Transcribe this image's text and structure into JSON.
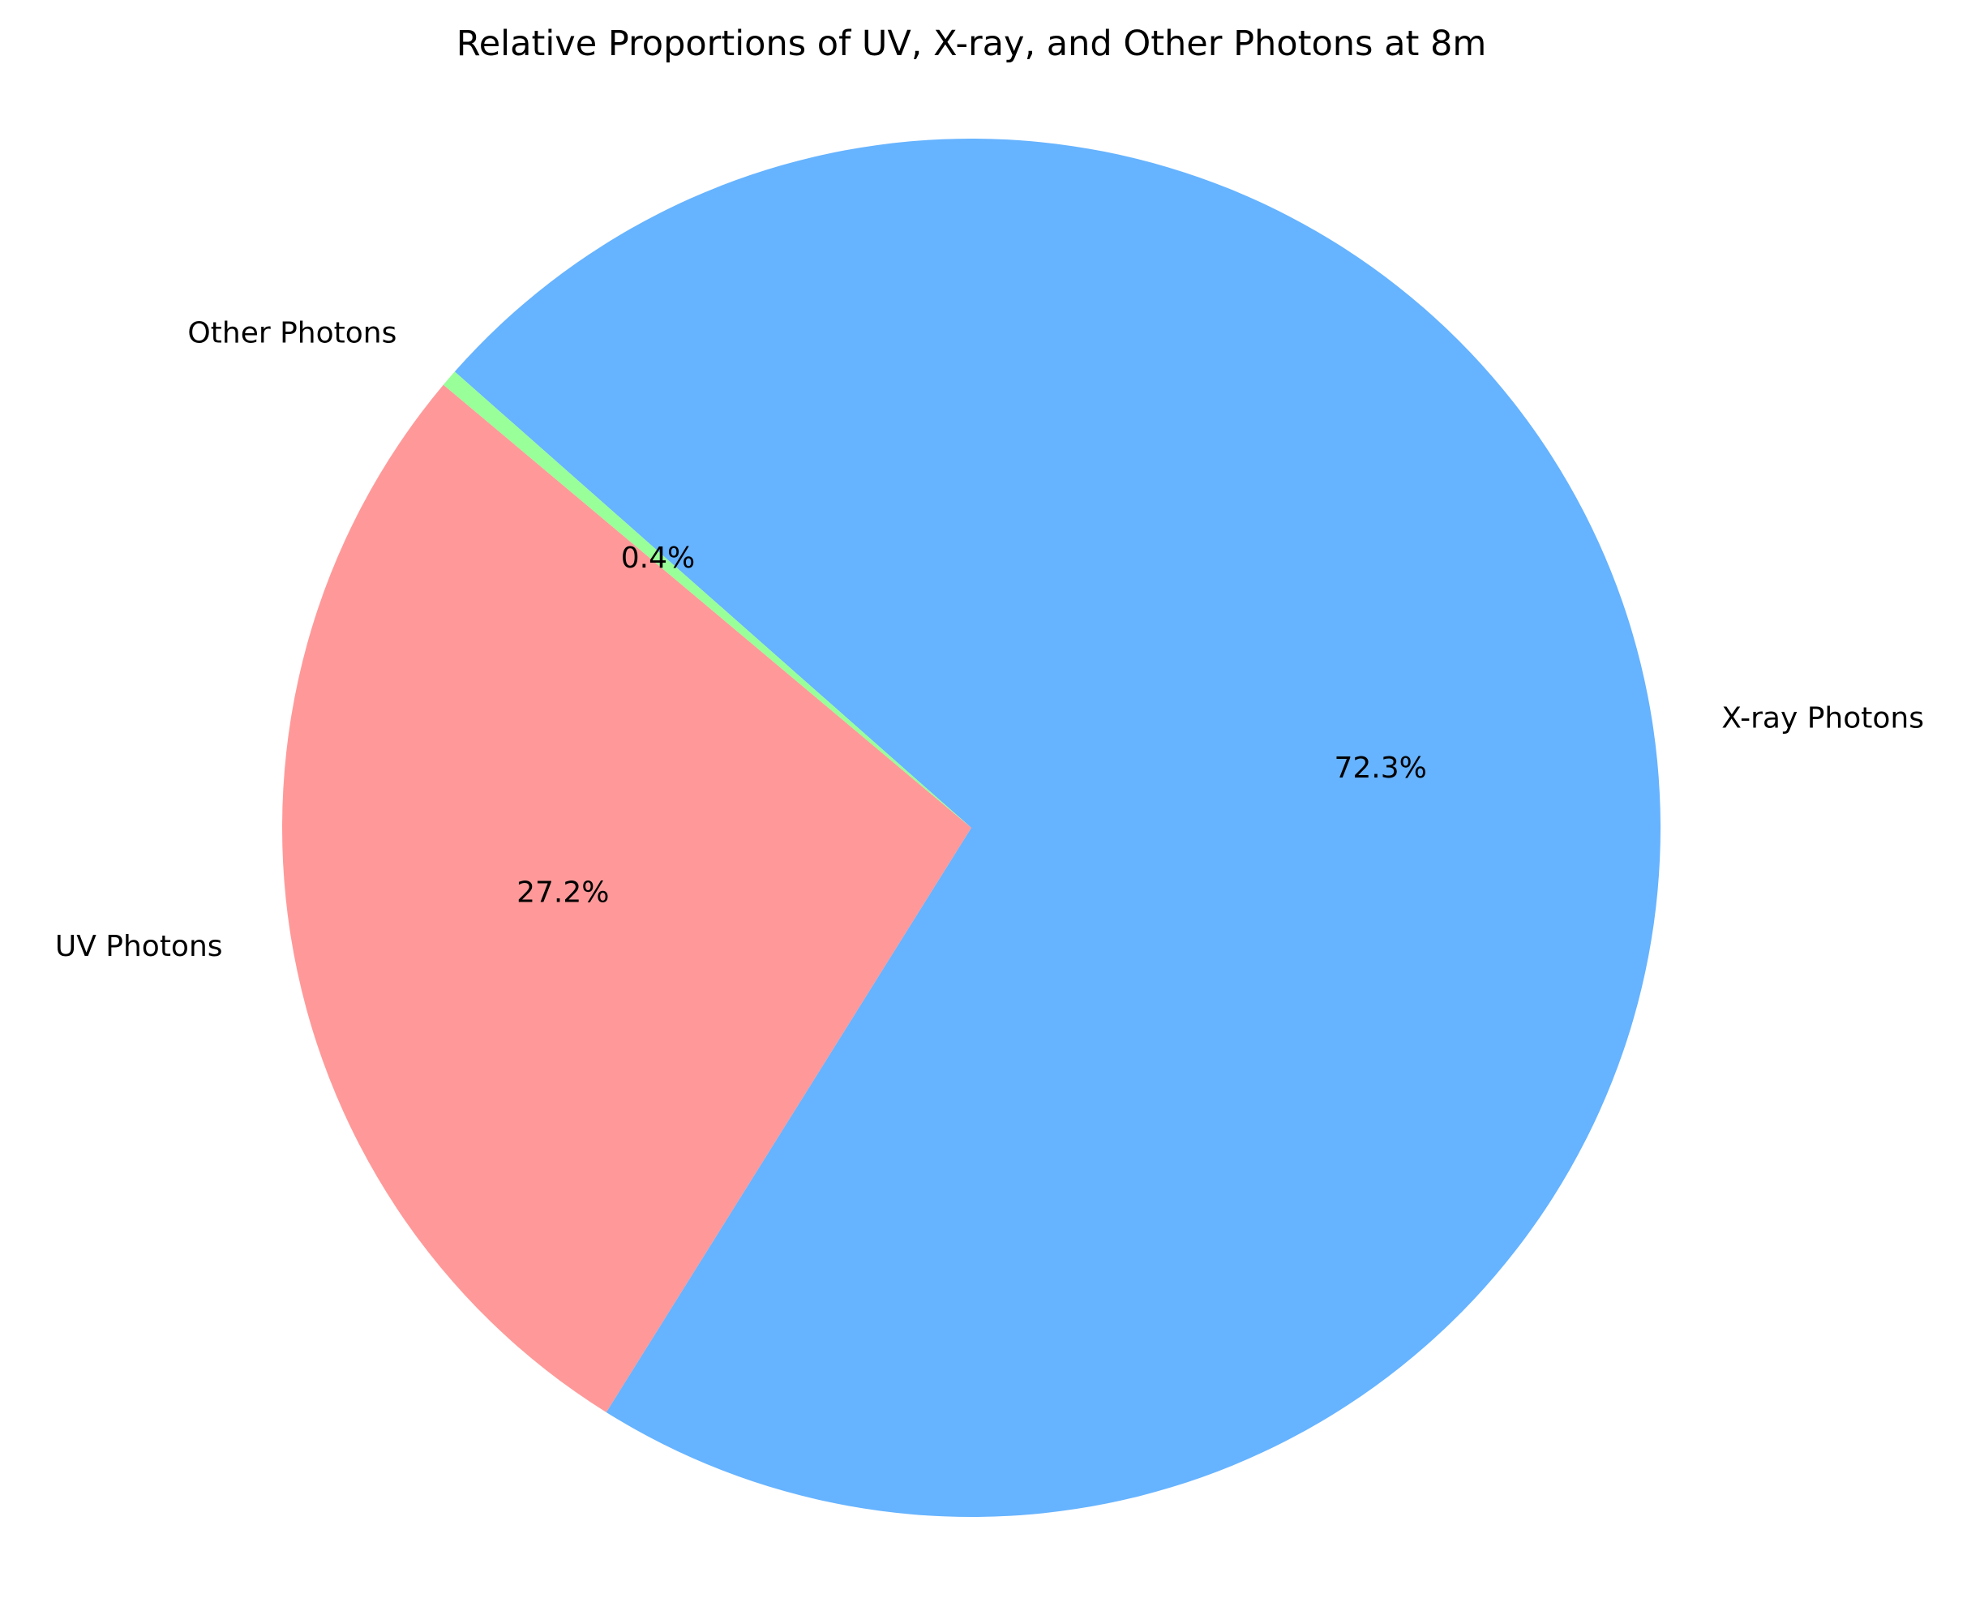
{
  "chart_data": {
    "type": "pie",
    "title": "Relative Proportions of UV, X-ray, and Other Photons at 8m",
    "slices": [
      {
        "name": "UV Photons",
        "value": 27.2,
        "percent_label": "27.2%",
        "color": "#ff9999"
      },
      {
        "name": "X-ray Photons",
        "value": 72.3,
        "percent_label": "72.3%",
        "color": "#66b3ff"
      },
      {
        "name": "Other Photons",
        "value": 0.4,
        "percent_label": "0.4%",
        "color": "#99ff99"
      }
    ],
    "start_angle_deg": 140,
    "direction": "counterclockwise"
  }
}
